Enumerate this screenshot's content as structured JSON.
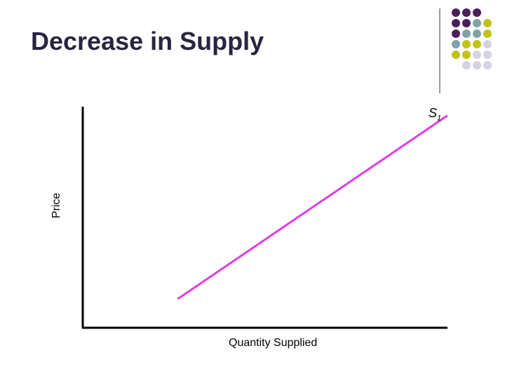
{
  "slide": {
    "title": "Decrease in Supply"
  },
  "decoration": {
    "dot_colors": [
      "#4a1f5c",
      "#7fa3a6",
      "#c3c21c",
      "#d4d3e3"
    ]
  },
  "chart_data": {
    "type": "line",
    "title": "",
    "xlabel": "Quantity Supplied",
    "ylabel": "Price",
    "series": [
      {
        "name": "S",
        "name_subscript": "1",
        "color": "#e23be6",
        "x": [
          0.26,
          1.0
        ],
        "y": [
          0.13,
          0.96
        ]
      }
    ],
    "xlim": [
      0,
      1
    ],
    "ylim": [
      0,
      1
    ],
    "grid": false
  }
}
